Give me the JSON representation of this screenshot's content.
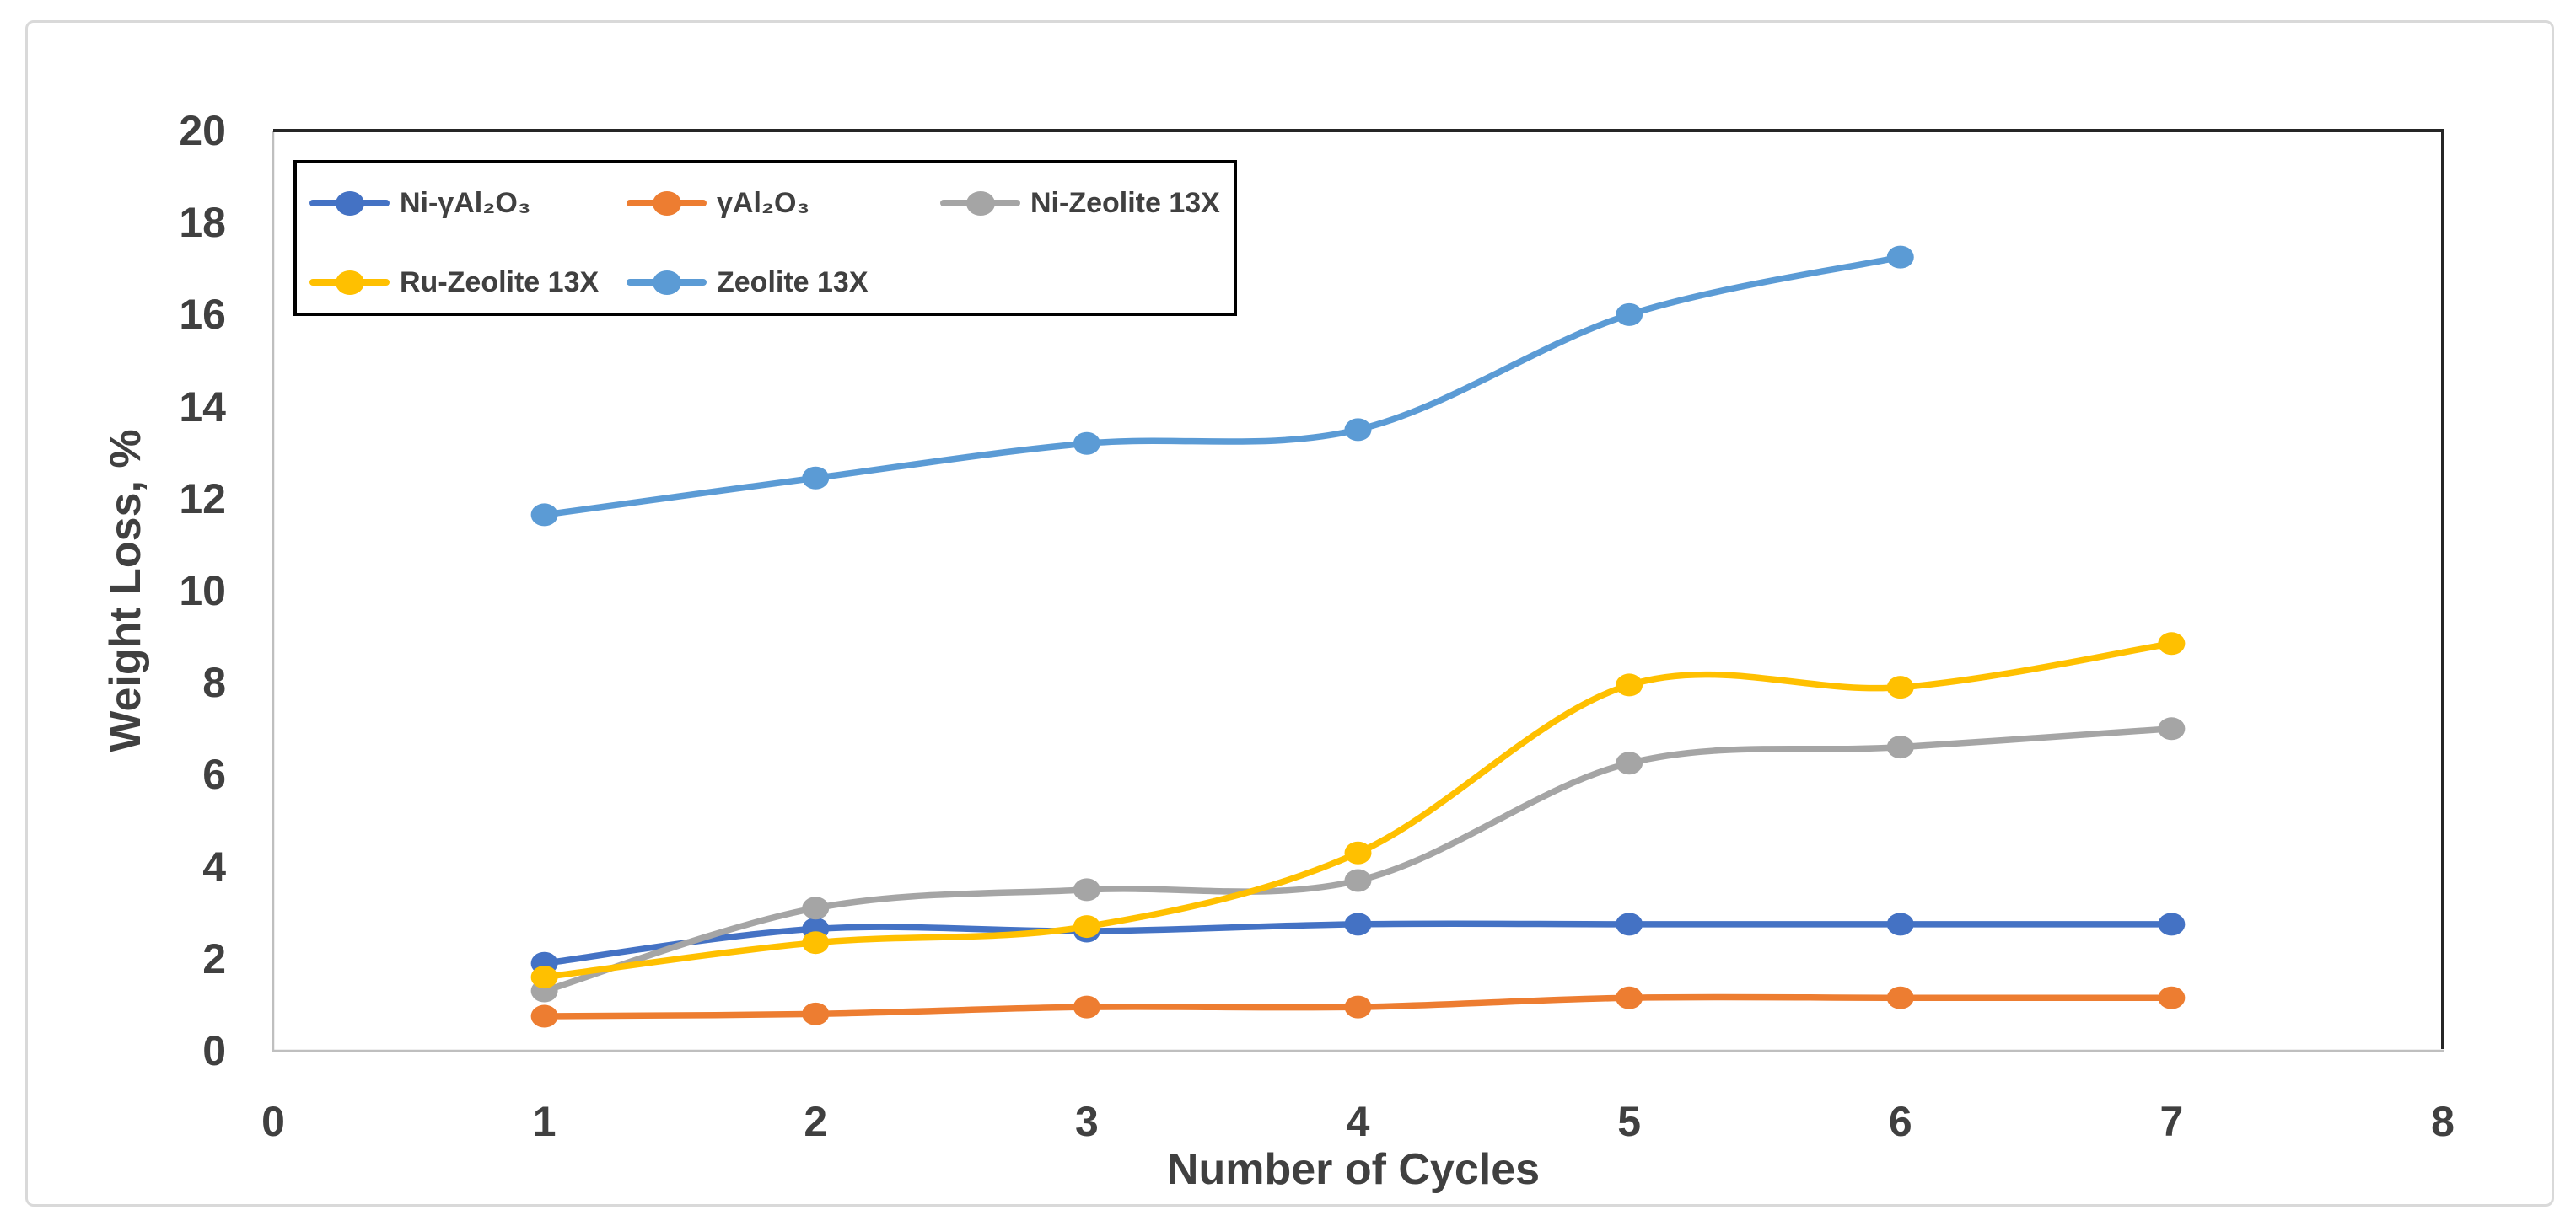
{
  "figure": {
    "type_label": "line-chart-figure",
    "background": "#ffffff",
    "frame_color": "#d9d9d9",
    "text_color": "#404040"
  },
  "chart_data": {
    "type": "line",
    "title": "",
    "xlabel": "Number of Cycles",
    "ylabel": "Weight Loss, %",
    "xlim": [
      0,
      8
    ],
    "ylim": [
      0,
      20
    ],
    "x_ticks": [
      0,
      1,
      2,
      3,
      4,
      5,
      6,
      7,
      8
    ],
    "y_ticks": [
      0,
      2,
      4,
      6,
      8,
      10,
      12,
      14,
      16,
      18,
      20
    ],
    "grid": false,
    "smoothed": true,
    "marker": "circle",
    "legend_position": "top-left-inside",
    "legend_rows": [
      [
        0,
        1,
        2
      ],
      [
        3,
        4
      ]
    ],
    "series": [
      {
        "name": "Ni-γAl₂O₃",
        "color": "#4472C4",
        "x": [
          1,
          2,
          3,
          4,
          5,
          6,
          7
        ],
        "values": [
          1.9,
          2.65,
          2.6,
          2.75,
          2.75,
          2.75,
          2.75
        ]
      },
      {
        "name": "γAl₂O₃",
        "color": "#ED7D31",
        "x": [
          1,
          2,
          3,
          4,
          5,
          6,
          7
        ],
        "values": [
          0.75,
          0.8,
          0.95,
          0.95,
          1.15,
          1.15,
          1.15
        ]
      },
      {
        "name": "Ni-Zeolite 13X",
        "color": "#A5A5A5",
        "x": [
          1,
          2,
          3,
          4,
          5,
          6,
          7
        ],
        "values": [
          1.3,
          3.1,
          3.5,
          3.7,
          6.25,
          6.6,
          7.0
        ]
      },
      {
        "name": "Ru-Zeolite 13X",
        "color": "#FFC000",
        "x": [
          1,
          2,
          3,
          4,
          5,
          6,
          7
        ],
        "values": [
          1.6,
          2.35,
          2.7,
          4.3,
          7.95,
          7.9,
          8.85
        ]
      },
      {
        "name": "Zeolite 13X",
        "color": "#5B9BD5",
        "x": [
          1,
          2,
          3,
          4,
          5,
          6
        ],
        "values": [
          11.65,
          12.45,
          13.2,
          13.5,
          16.0,
          17.25
        ]
      }
    ]
  }
}
